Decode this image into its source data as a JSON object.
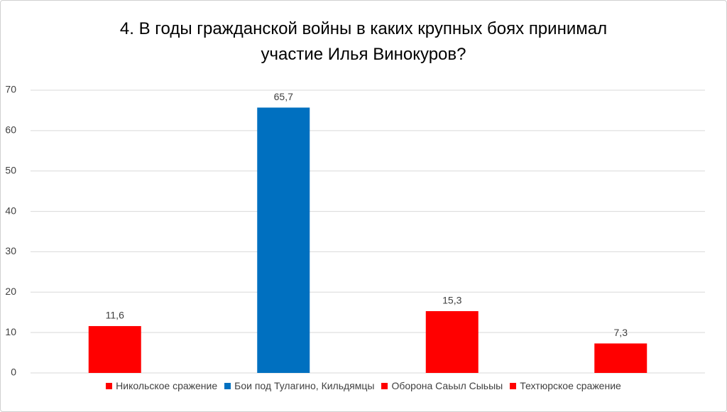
{
  "chart_data": {
    "type": "bar",
    "title": "4. В годы гражданской войны в каких крупных боях принимал участие Илья Винокуров?",
    "series": [
      {
        "name": "Никольское сражение",
        "color": "#ff0000",
        "values": [
          11.6
        ],
        "value_labels": [
          "11,6"
        ]
      },
      {
        "name": "Бои под Тулагино, Кильдямцы",
        "color": "#0070c0",
        "values": [
          65.7
        ],
        "value_labels": [
          "65,7"
        ]
      },
      {
        "name": "Оборона Саьыл Сыьыы",
        "color": "#ff0000",
        "values": [
          15.3
        ],
        "value_labels": [
          "15,3"
        ]
      },
      {
        "name": "Техтюрское сражение",
        "color": "#ff0000",
        "values": [
          7.3
        ],
        "value_labels": [
          "7,3"
        ]
      }
    ],
    "ylim": [
      0,
      70
    ],
    "yticks": [
      0,
      10,
      20,
      30,
      40,
      50,
      60,
      70
    ],
    "grid": true,
    "legend": "bottom"
  }
}
